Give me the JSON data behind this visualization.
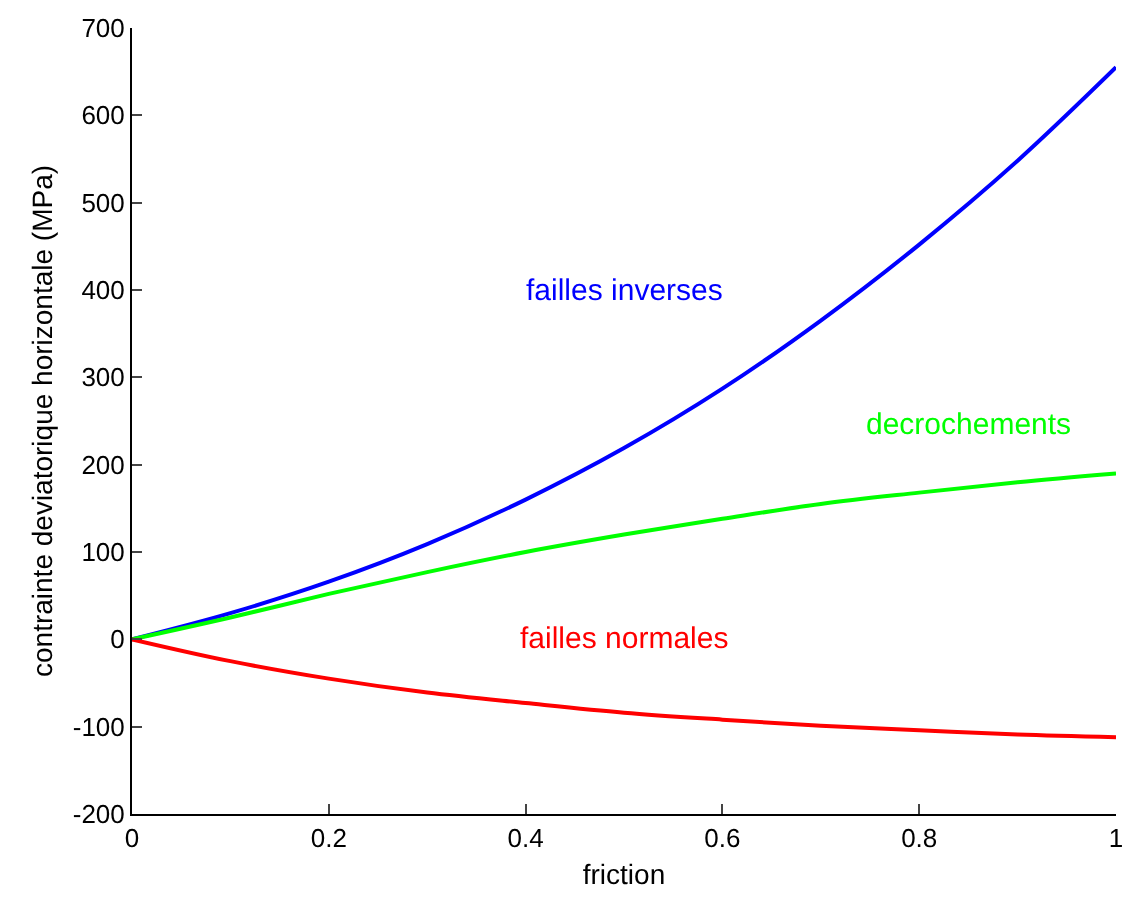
{
  "chart_data": {
    "type": "line",
    "xlabel": "friction",
    "ylabel": "contrainte deviatorique horizontale (MPa)",
    "x": [
      0,
      0.1,
      0.2,
      0.3,
      0.4,
      0.5,
      0.6,
      0.7,
      0.8,
      0.9,
      1
    ],
    "series": [
      {
        "name": "failles inverses",
        "color": "#0000ff",
        "values": [
          0,
          30,
          66,
          109,
          160,
          219,
          287,
          365,
          452,
          548,
          655
        ]
      },
      {
        "name": "decrochements",
        "color": "#00ff00",
        "values": [
          0,
          25,
          52,
          77,
          100,
          120,
          138,
          155,
          168,
          180,
          190
        ]
      },
      {
        "name": "failles normales",
        "color": "#ff0000",
        "values": [
          0,
          -25,
          -45,
          -61,
          -73,
          -84,
          -92,
          -99,
          -104,
          -109,
          -112
        ]
      }
    ],
    "xlim": [
      0,
      1
    ],
    "xticks": [
      0,
      0.2,
      0.4,
      0.6,
      0.8,
      1
    ],
    "ylim": [
      -200,
      700
    ],
    "yticks": [
      -200,
      -100,
      0,
      100,
      200,
      300,
      400,
      500,
      600,
      700
    ],
    "grid": false,
    "legend": false,
    "marker": "none",
    "line_style": "solid"
  }
}
